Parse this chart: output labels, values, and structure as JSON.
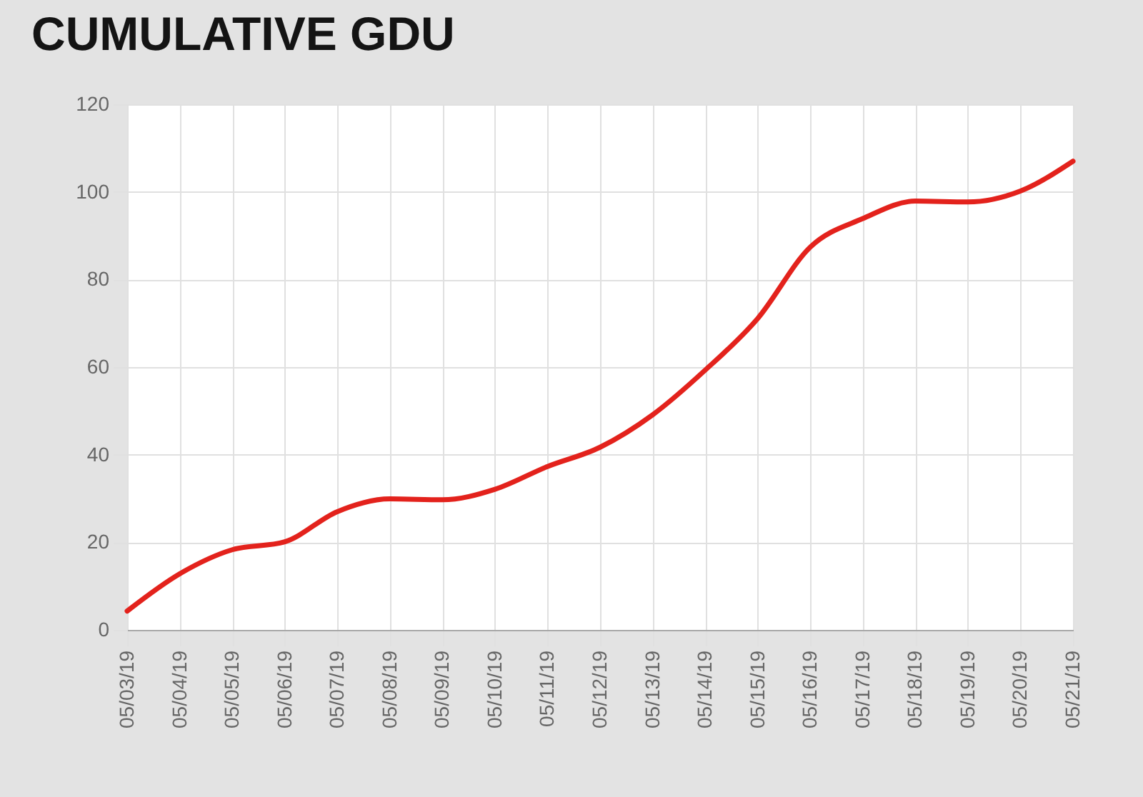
{
  "chart_data": {
    "type": "line",
    "title": "CUMULATIVE GDU",
    "categories": [
      "05/03/19",
      "05/04/19",
      "05/05/19",
      "05/06/19",
      "05/07/19",
      "05/08/19",
      "05/09/19",
      "05/10/19",
      "05/11/19",
      "05/12/19",
      "05/13/19",
      "05/14/19",
      "05/15/19",
      "05/16/19",
      "05/17/19",
      "05/18/19",
      "05/19/19",
      "05/20/19",
      "05/21/19"
    ],
    "series": [
      {
        "color": "#e3221c",
        "values": [
          4.3,
          12.8,
          18.3,
          20.1,
          27.0,
          29.9,
          29.7,
          32.1,
          37.3,
          41.7,
          49.1,
          59.3,
          71.1,
          87.4,
          93.9,
          97.9,
          97.7,
          100.2,
          107.0
        ]
      }
    ],
    "ylim": [
      0,
      120
    ],
    "yticks": [
      0,
      20,
      40,
      60,
      80,
      100,
      120
    ],
    "grid": true,
    "line_style": "solid"
  }
}
